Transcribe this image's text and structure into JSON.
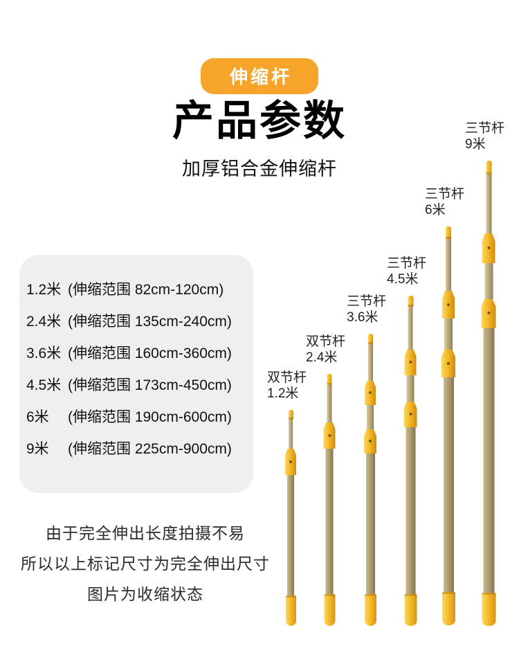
{
  "page": {
    "badge": "伸缩杆",
    "title": "产品参数",
    "subtitle": "加厚铝合金伸缩杆"
  },
  "specs": {
    "items": [
      {
        "size": "1.2米",
        "range": "(伸缩范围 82cm-120cm)"
      },
      {
        "size": "2.4米",
        "range": "(伸缩范围 135cm-240cm)"
      },
      {
        "size": "3.6米",
        "range": "(伸缩范围 160cm-360cm)"
      },
      {
        "size": "4.5米",
        "range": "(伸缩范围 173cm-450cm)"
      },
      {
        "size": "6米",
        "range": "(伸缩范围 190cm-600cm)"
      },
      {
        "size": "9米",
        "range": "(伸缩范围 225cm-900cm)"
      }
    ]
  },
  "note": {
    "lines": [
      "由于完全伸出长度拍摄不易",
      "所以以上标记尺寸为完全伸出尺寸",
      "图片为收缩状态"
    ]
  },
  "poles": [
    {
      "type": "双节杆",
      "size": "1.2米",
      "sections": 2
    },
    {
      "type": "双节杆",
      "size": "2.4米",
      "sections": 2
    },
    {
      "type": "三节杆",
      "size": "3.6米",
      "sections": 3
    },
    {
      "type": "三节杆",
      "size": "4.5米",
      "sections": 3
    },
    {
      "type": "三节杆",
      "size": "6米",
      "sections": 3
    },
    {
      "type": "三节杆",
      "size": "9米",
      "sections": 3
    }
  ],
  "colors": {
    "badge_orange": "#F7A52A",
    "pole_yellow": "#F2B522",
    "pole_tan": "#B5A476",
    "spec_box_gray": "#EFEFEF"
  }
}
